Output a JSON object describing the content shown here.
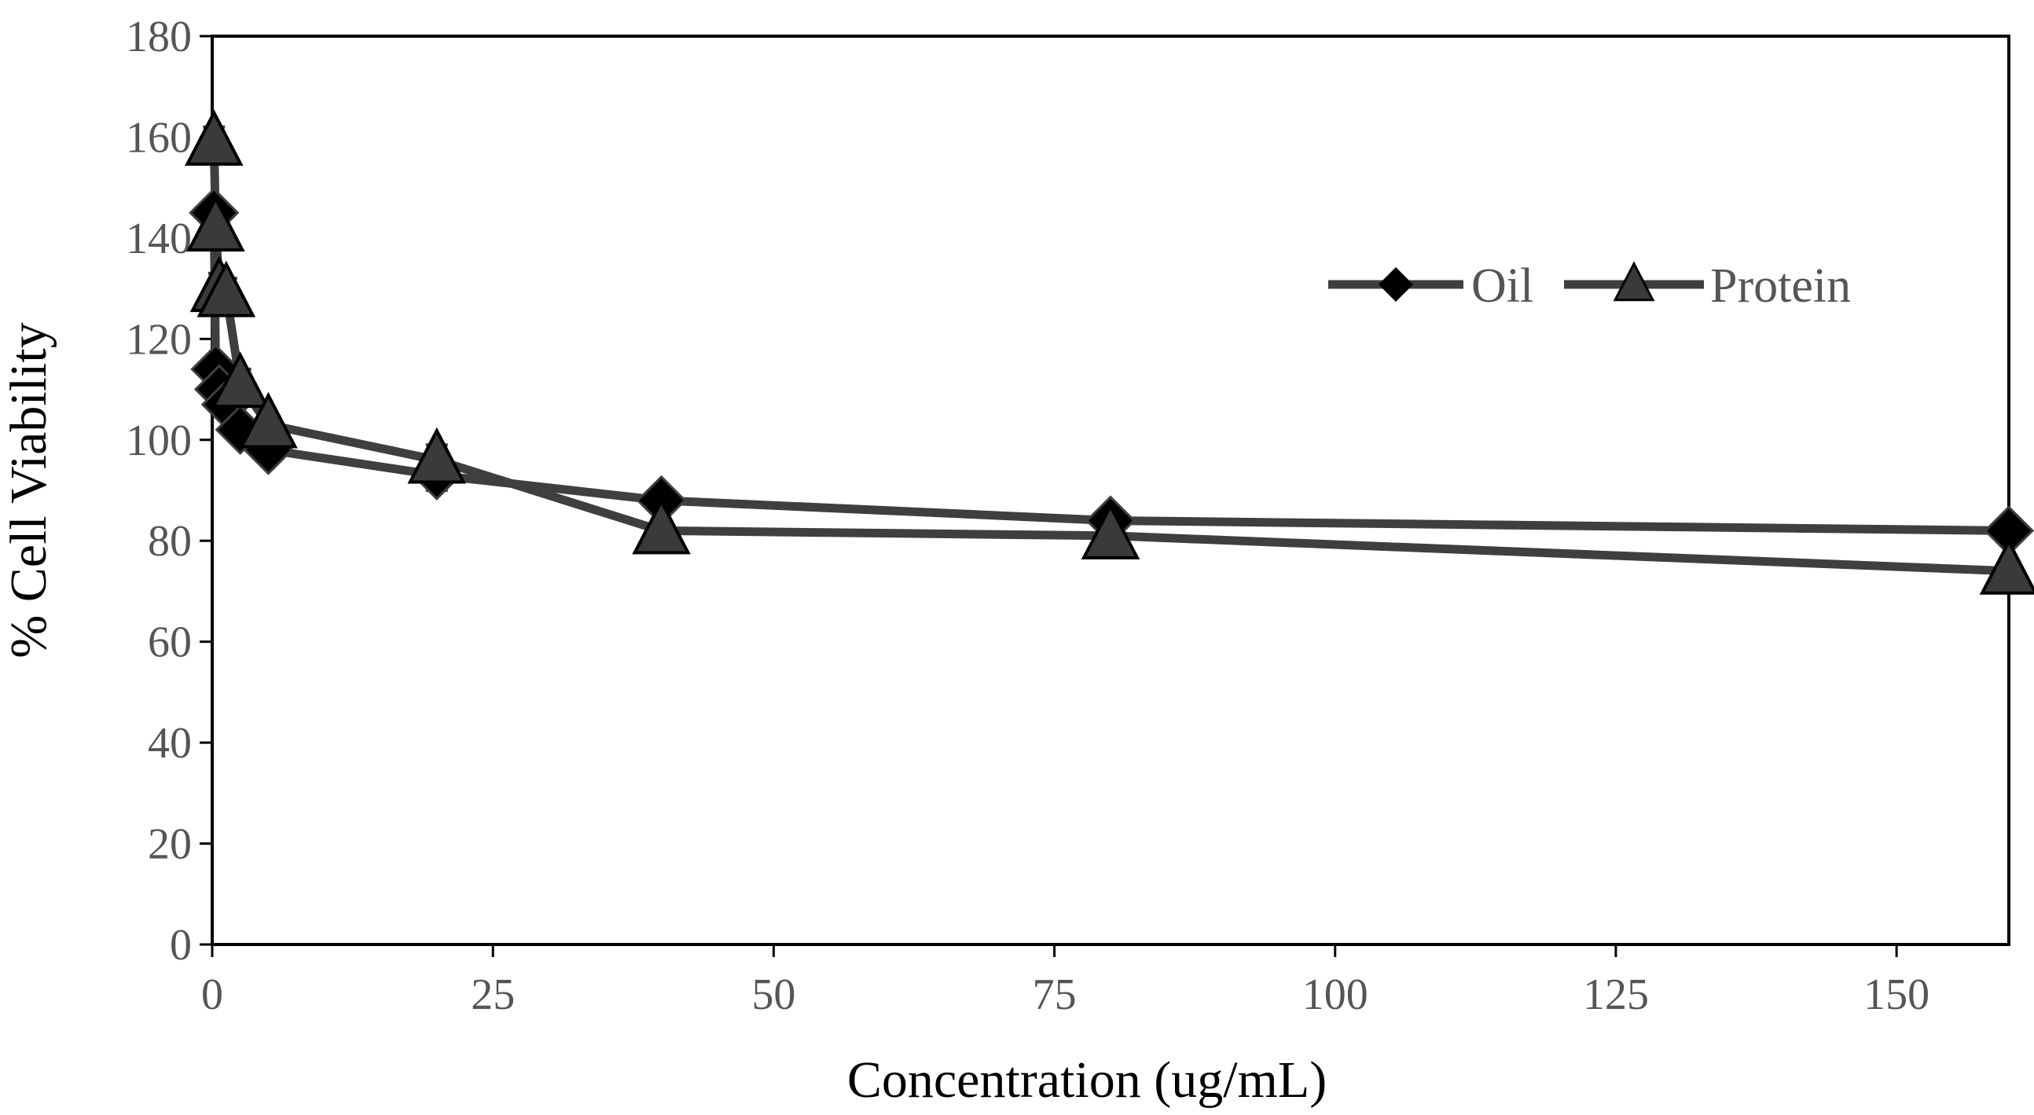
{
  "chart_data": {
    "type": "line",
    "title": "",
    "xlabel": "Concentration (ug/mL)",
    "ylabel": "%  Cell Viability",
    "xlim": [
      0,
      160
    ],
    "ylim": [
      0,
      180
    ],
    "xticks": [
      0,
      25,
      50,
      75,
      100,
      125,
      150
    ],
    "yticks": [
      0,
      20,
      40,
      60,
      80,
      100,
      120,
      140,
      160,
      180
    ],
    "grid": false,
    "legend_position": "top-right",
    "series": [
      {
        "name": "Oil",
        "marker": "diamond",
        "x": [
          0.16,
          0.31,
          0.63,
          1.25,
          2.5,
          5,
          20,
          40,
          80,
          160
        ],
        "y": [
          145,
          114,
          110,
          107,
          102,
          98,
          93,
          88,
          84,
          82
        ],
        "error": [
          2,
          2,
          2,
          2,
          2,
          2,
          3,
          2,
          2,
          2
        ]
      },
      {
        "name": "Protein",
        "marker": "triangle",
        "x": [
          0.16,
          0.31,
          0.63,
          1.25,
          2.5,
          5,
          20,
          40,
          80,
          160
        ],
        "y": [
          159,
          142,
          130,
          129,
          111,
          103,
          96,
          82,
          81,
          74
        ],
        "error": [
          3,
          3,
          3,
          3,
          3,
          2,
          3,
          2,
          2,
          2
        ]
      }
    ],
    "colors": {
      "line": "#3f3f3f",
      "marker_fill": "#000000",
      "triangle_fill": "#3a3a3a",
      "axis": "#000000",
      "tick_text": "#555555"
    }
  }
}
